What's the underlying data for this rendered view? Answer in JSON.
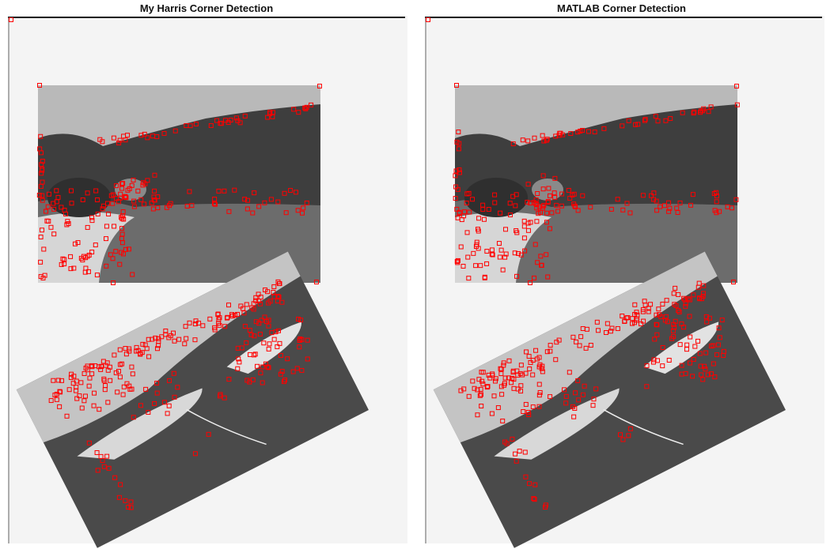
{
  "panels": [
    {
      "id": "left",
      "title": "My Harris Corner Detection"
    },
    {
      "id": "right",
      "title": "MATLAB Corner Detection"
    }
  ],
  "style": {
    "paper": "#f4f4f4",
    "sky": "#b9b9b9",
    "forest": "#3e3e3e",
    "water": "#6c6c6c",
    "sand": "#d6d6d6",
    "boat_sky": "#c4c4c4",
    "boat_water": "#4a4a4a",
    "marker": "#ff0000"
  }
}
